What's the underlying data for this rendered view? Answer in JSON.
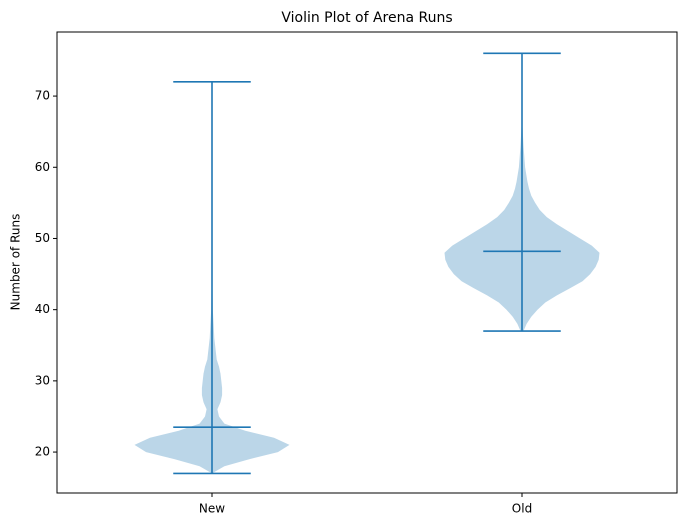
{
  "chart_data": {
    "type": "violin",
    "title": "Violin Plot of Arena Runs",
    "ylabel": "Number of Runs",
    "categories": [
      "New",
      "Old"
    ],
    "ylim": [
      14.25,
      79
    ],
    "yticks": [
      20,
      30,
      40,
      50,
      60,
      70
    ],
    "color": "#1f77b4",
    "fill_color": "#1f77b4",
    "series": [
      {
        "min": 17,
        "max": 72,
        "mean": 23.5,
        "kde_y": [
          17,
          18,
          19,
          20,
          21,
          22,
          23,
          24,
          25,
          26,
          27,
          28,
          29,
          30,
          31,
          32,
          33,
          34,
          35,
          36,
          38,
          40,
          44,
          50,
          72
        ],
        "density": [
          0,
          0.16,
          0.48,
          0.85,
          1,
          0.8,
          0.43,
          0.16,
          0.09,
          0.07,
          0.11,
          0.13,
          0.13,
          0.12,
          0.11,
          0.09,
          0.06,
          0.05,
          0.04,
          0.03,
          0.02,
          0.01,
          0.005,
          0,
          0
        ]
      },
      {
        "min": 37,
        "max": 76,
        "mean": 48.2,
        "kde_y": [
          37,
          38,
          39,
          40,
          41,
          42,
          43,
          44,
          45,
          46,
          47,
          48,
          49,
          50,
          51,
          52,
          53,
          54,
          55,
          56,
          57,
          58,
          60,
          63,
          66,
          70,
          76
        ],
        "density": [
          0.02,
          0.06,
          0.12,
          0.2,
          0.3,
          0.45,
          0.62,
          0.78,
          0.88,
          0.95,
          0.99,
          1,
          0.9,
          0.75,
          0.6,
          0.45,
          0.32,
          0.23,
          0.17,
          0.12,
          0.09,
          0.07,
          0.04,
          0.02,
          0.005,
          0,
          0
        ]
      }
    ]
  }
}
